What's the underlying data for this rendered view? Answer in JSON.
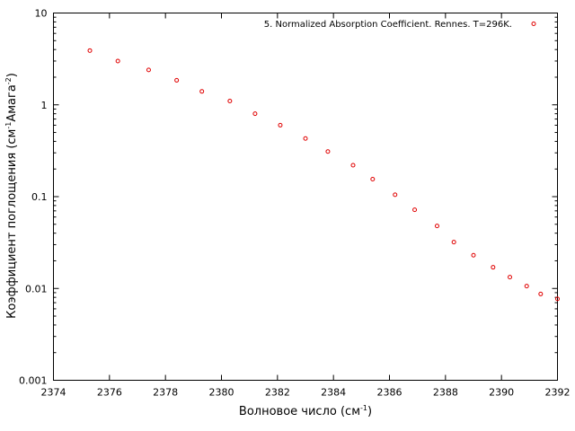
{
  "chart_data": {
    "type": "scatter",
    "title": "",
    "xlabel": "Волновое число (см",
    "xlabel_sup": "-1",
    "xlabel_end": ")",
    "ylabel": "Коэффициент поглощения (см",
    "ylabel_sup1": "-1",
    "ylabel_mid": "Амага",
    "ylabel_sup2": "-2",
    "ylabel_end": ")",
    "xlim": [
      2374,
      2392
    ],
    "ylim": [
      0.001,
      10
    ],
    "y_scale": "log",
    "x_ticks": [
      "2374",
      "2376",
      "2378",
      "2380",
      "2382",
      "2384",
      "2386",
      "2388",
      "2390",
      "2392"
    ],
    "y_ticks": [
      "0.001",
      "0.01",
      "0.1",
      "1",
      "10"
    ],
    "grid": false,
    "legend_position": "top-right",
    "marker": "open-circle",
    "series": [
      {
        "name": "5. Normalized Absorption Coefficient. Rennes. T=296K.",
        "color": "#e00000",
        "x": [
          2375.3,
          2376.3,
          2377.4,
          2378.4,
          2379.3,
          2380.3,
          2381.2,
          2382.1,
          2383.0,
          2383.8,
          2384.7,
          2385.4,
          2386.2,
          2386.9,
          2387.7,
          2388.3,
          2389.0,
          2389.7,
          2390.3,
          2390.9,
          2391.4,
          2392.0
        ],
        "y": [
          3.9,
          3.0,
          2.4,
          1.85,
          1.4,
          1.1,
          0.8,
          0.6,
          0.43,
          0.31,
          0.22,
          0.155,
          0.105,
          0.072,
          0.048,
          0.032,
          0.023,
          0.017,
          0.0133,
          0.0106,
          0.0087,
          0.0077
        ]
      }
    ]
  }
}
